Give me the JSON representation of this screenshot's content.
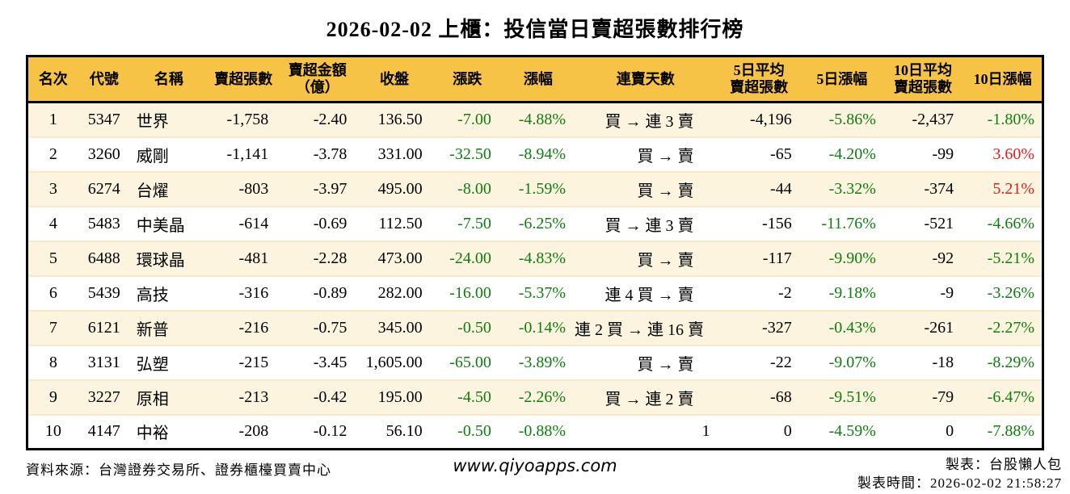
{
  "title": "2026-02-02 上櫃：投信當日賣超張數排行榜",
  "colors": {
    "header_bg": "#F6C346",
    "row_alt_bg": "#FCF4DF",
    "row_bg": "#FFFFFF",
    "negative_green": "#0F7D0F",
    "positive_red": "#E11D1D",
    "row_separator": "#F5E9CC",
    "border_black": "#000000"
  },
  "table": {
    "header_lines": [
      [
        "名次"
      ],
      [
        "代號"
      ],
      [
        "名稱"
      ],
      [
        "賣超張數"
      ],
      [
        "賣超金額",
        "（億）"
      ],
      [
        "收盤"
      ],
      [
        "漲跌"
      ],
      [
        "漲幅"
      ],
      [
        "連賣天數"
      ],
      [
        "5日平均",
        "賣超張數"
      ],
      [
        "5日漲幅"
      ],
      [
        "10日平均",
        "賣超張數"
      ],
      [
        "10日漲幅"
      ]
    ],
    "colored_columns": [
      6,
      7,
      10,
      12
    ]
  },
  "chart_data": {
    "type": "table",
    "title": "2026-02-02 上櫃：投信當日賣超張數排行榜",
    "columns": [
      "名次",
      "代號",
      "名稱",
      "賣超張數",
      "賣超金額（億）",
      "收盤",
      "漲跌",
      "漲幅",
      "連賣天數",
      "5日平均賣超張數",
      "5日漲幅",
      "10日平均賣超張數",
      "10日漲幅"
    ],
    "rows": [
      [
        "1",
        "5347",
        "世界",
        "-1,758",
        "-2.40",
        "136.50",
        "-7.00",
        "-4.88%",
        "買 → 連 3 賣",
        "-4,196",
        "-5.86%",
        "-2,437",
        "-1.80%"
      ],
      [
        "2",
        "3260",
        "威剛",
        "-1,141",
        "-3.78",
        "331.00",
        "-32.50",
        "-8.94%",
        "買 → 賣",
        "-65",
        "-4.20%",
        "-99",
        "3.60%"
      ],
      [
        "3",
        "6274",
        "台燿",
        "-803",
        "-3.97",
        "495.00",
        "-8.00",
        "-1.59%",
        "買 → 賣",
        "-44",
        "-3.32%",
        "-374",
        "5.21%"
      ],
      [
        "4",
        "5483",
        "中美晶",
        "-614",
        "-0.69",
        "112.50",
        "-7.50",
        "-6.25%",
        "買 → 連 3 賣",
        "-156",
        "-11.76%",
        "-521",
        "-4.66%"
      ],
      [
        "5",
        "6488",
        "環球晶",
        "-481",
        "-2.28",
        "473.00",
        "-24.00",
        "-4.83%",
        "買 → 賣",
        "-117",
        "-9.90%",
        "-92",
        "-5.21%"
      ],
      [
        "6",
        "5439",
        "高技",
        "-316",
        "-0.89",
        "282.00",
        "-16.00",
        "-5.37%",
        "連 4 買 → 賣",
        "-2",
        "-9.18%",
        "-9",
        "-3.26%"
      ],
      [
        "7",
        "6121",
        "新普",
        "-216",
        "-0.75",
        "345.00",
        "-0.50",
        "-0.14%",
        "連 2 買 → 連 16 賣",
        "-327",
        "-0.43%",
        "-261",
        "-2.27%"
      ],
      [
        "8",
        "3131",
        "弘塑",
        "-215",
        "-3.45",
        "1,605.00",
        "-65.00",
        "-3.89%",
        "買 → 賣",
        "-22",
        "-9.07%",
        "-18",
        "-8.29%"
      ],
      [
        "9",
        "3227",
        "原相",
        "-213",
        "-0.42",
        "195.00",
        "-4.50",
        "-2.26%",
        "買 → 連 2 賣",
        "-68",
        "-9.51%",
        "-79",
        "-6.47%"
      ],
      [
        "10",
        "4147",
        "中裕",
        "-208",
        "-0.12",
        "56.10",
        "-0.50",
        "-0.88%",
        "1",
        "0",
        "-4.59%",
        "0",
        "-7.88%"
      ]
    ]
  },
  "footer": {
    "source": "資料來源：台灣證券交易所、證券櫃檯買賣中心",
    "website": "www.qiyoapps.com",
    "maker": "製表：台股懶人包",
    "timestamp": "製表時間：2026-02-02 21:58:27"
  }
}
